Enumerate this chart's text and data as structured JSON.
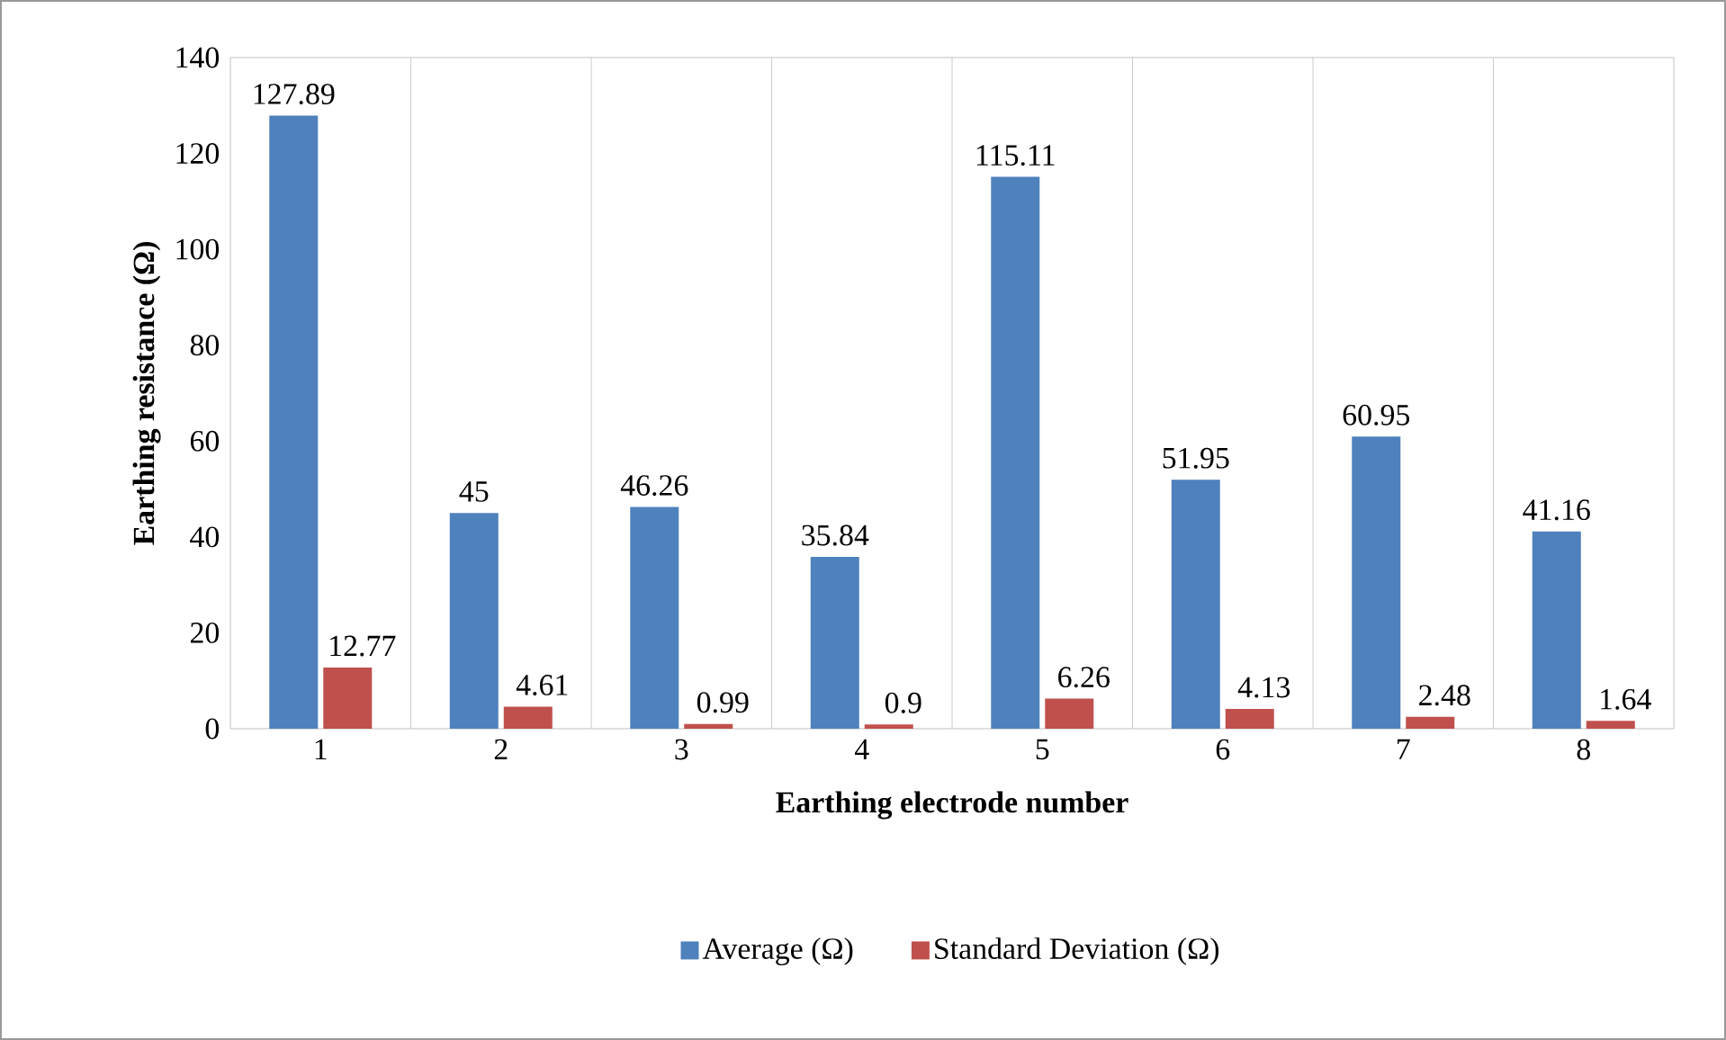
{
  "chart_data": {
    "type": "bar",
    "xlabel": "Earthing  electrode number",
    "ylabel": "Earthing  resistance (Ω)",
    "categories": [
      "1",
      "2",
      "3",
      "4",
      "5",
      "6",
      "7",
      "8"
    ],
    "series": [
      {
        "name": "Average  (Ω)",
        "color": "#4f81bd",
        "values": [
          127.89,
          45,
          46.26,
          35.84,
          115.11,
          51.95,
          60.95,
          41.16
        ]
      },
      {
        "name": "Standard Deviation  (Ω)",
        "color": "#c0504d",
        "values": [
          12.77,
          4.61,
          0.99,
          0.9,
          6.26,
          4.13,
          2.48,
          1.64
        ]
      }
    ],
    "ylim": [
      0,
      140
    ],
    "yticks": [
      0,
      20,
      40,
      60,
      80,
      100,
      120,
      140
    ],
    "grid": "x",
    "legend": "bottom",
    "data_labels": true
  }
}
